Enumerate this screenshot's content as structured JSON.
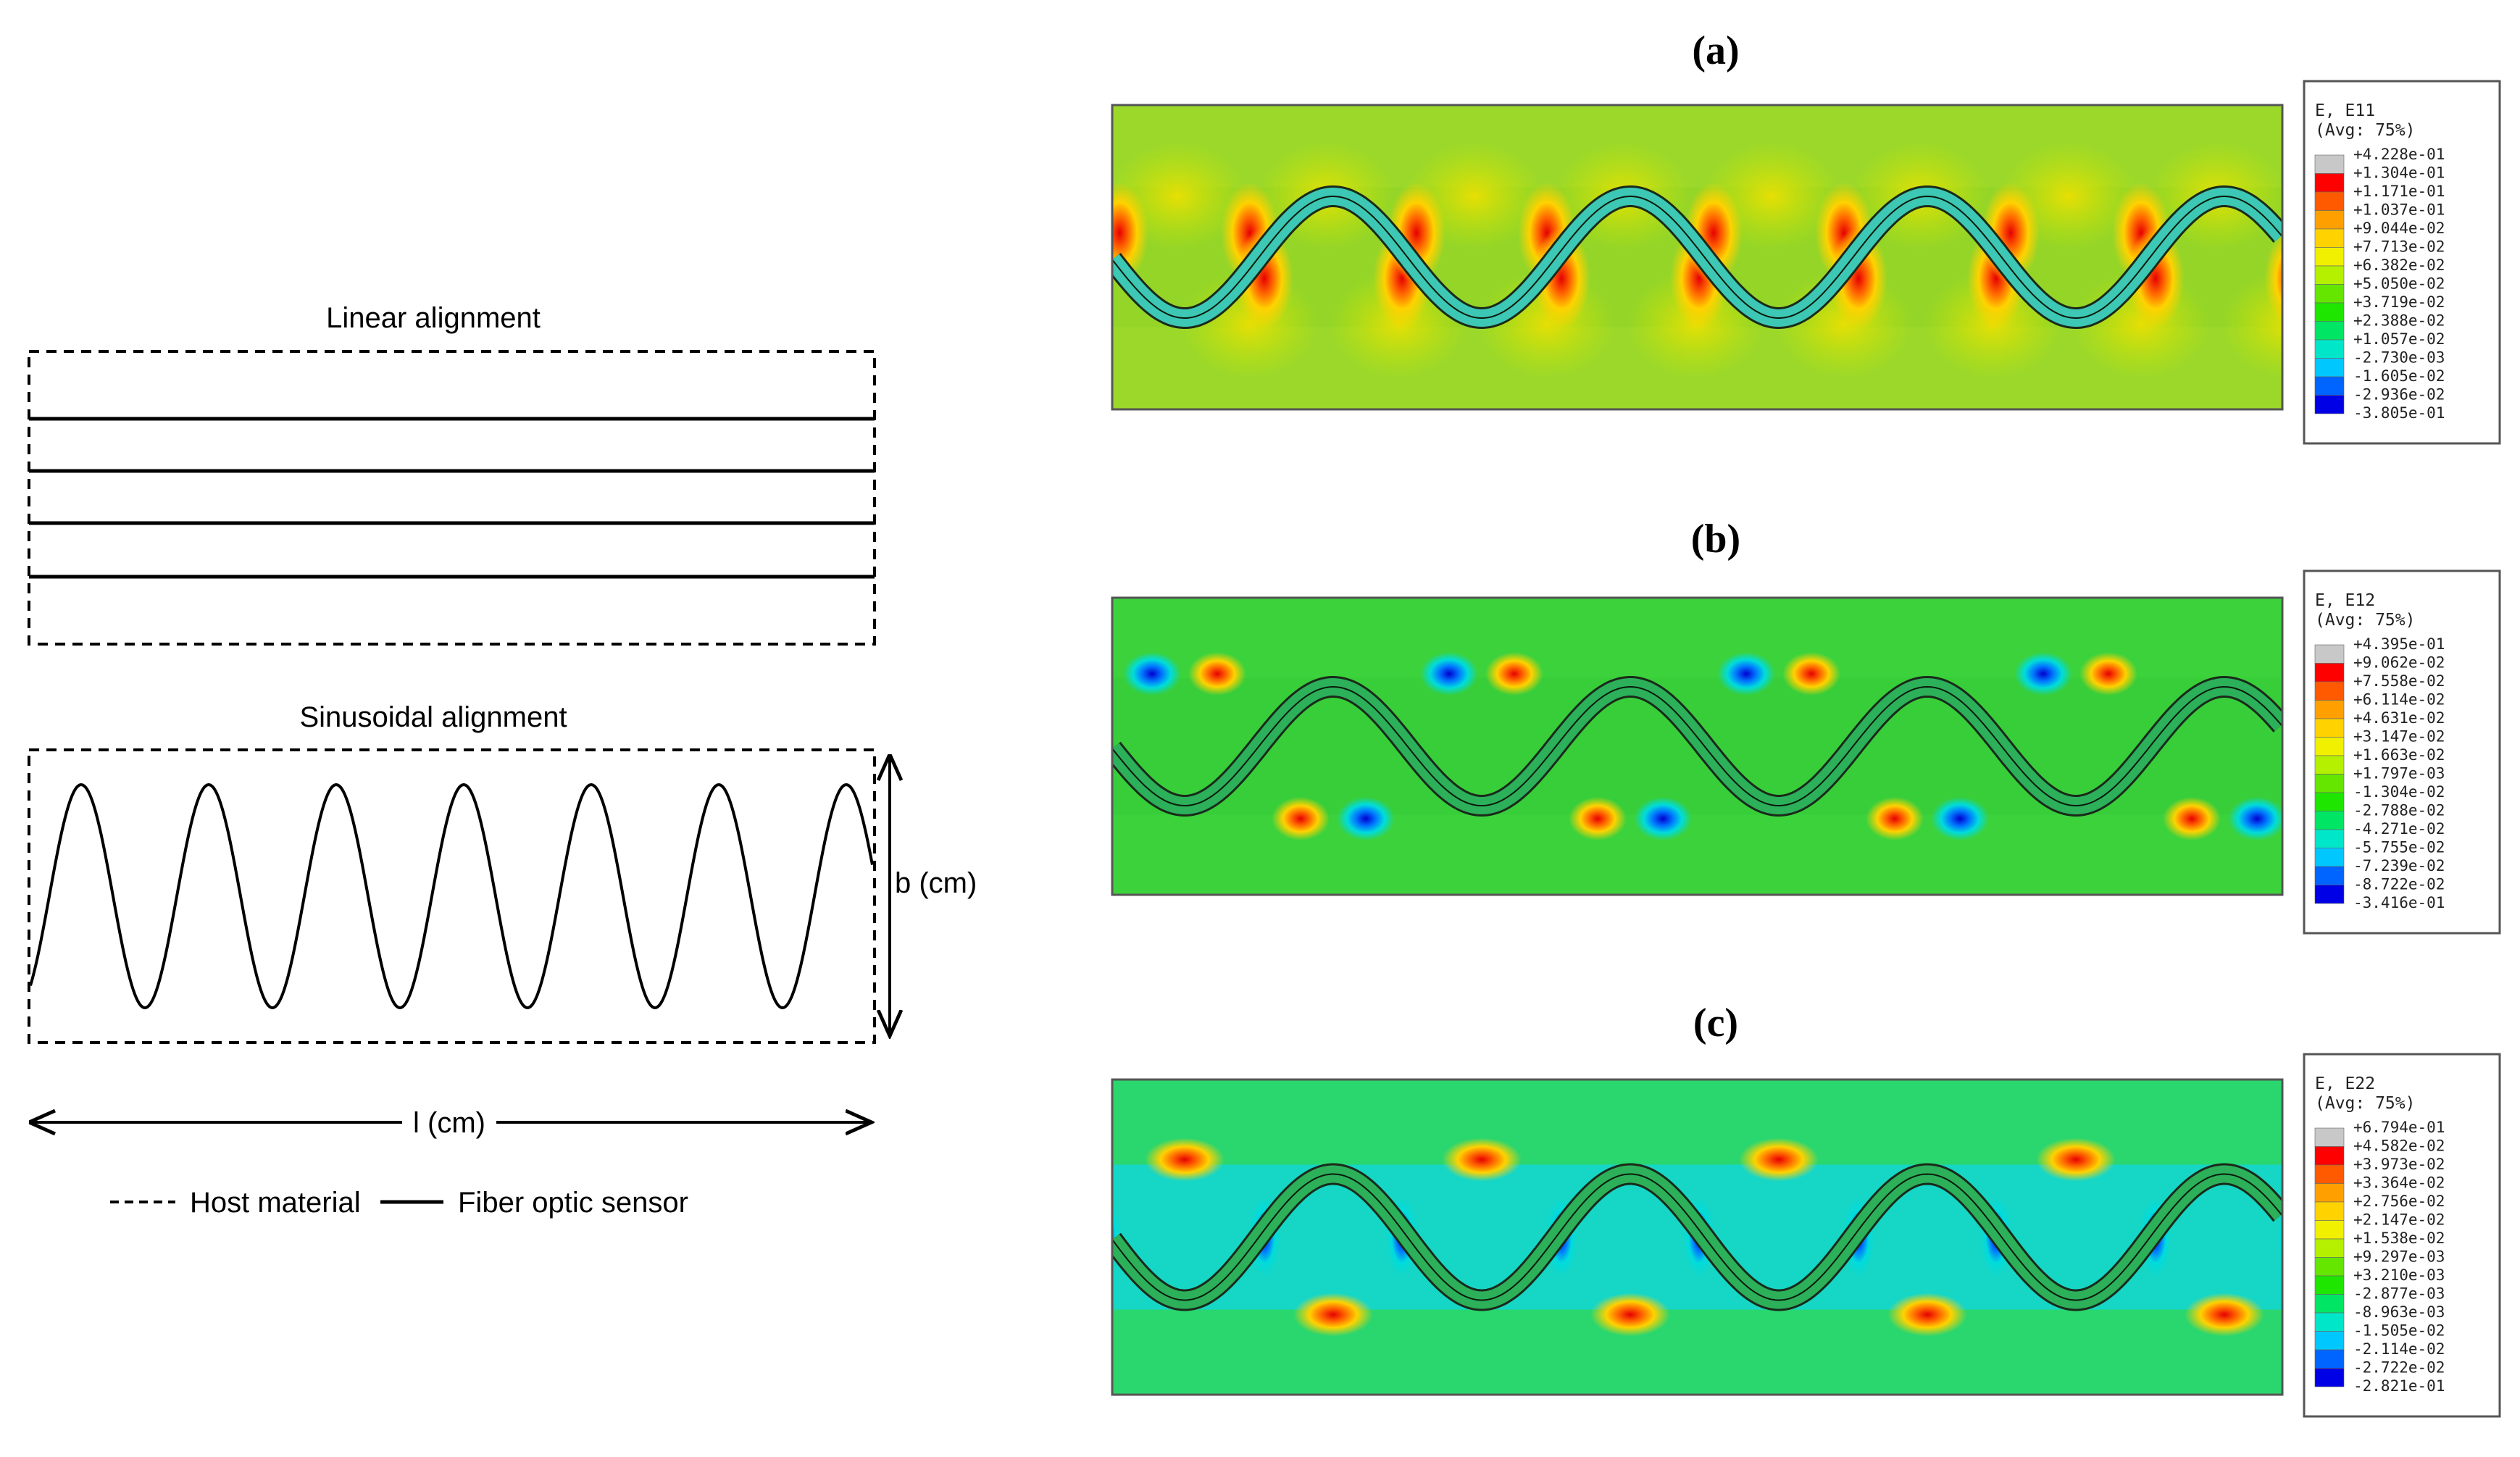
{
  "left": {
    "linear_title": "Linear alignment",
    "sinusoidal_title": "Sinusoidal alignment",
    "b_label": "b (cm)",
    "l_label": "l (cm)",
    "legend_host": "Host material",
    "legend_sensor": "Fiber optic sensor"
  },
  "panels": [
    {
      "label": "(a)",
      "legend_title": "E, E11",
      "legend_avg": "(Avg: 75%)",
      "legend_values": [
        "+4.228e-01",
        "+1.304e-01",
        "+1.171e-01",
        "+1.037e-01",
        "+9.044e-02",
        "+7.713e-02",
        "+6.382e-02",
        "+5.050e-02",
        "+3.719e-02",
        "+2.388e-02",
        "+1.057e-02",
        "-2.730e-03",
        "-1.605e-02",
        "-2.936e-02",
        "-3.805e-01"
      ]
    },
    {
      "label": "(b)",
      "legend_title": "E, E12",
      "legend_avg": "(Avg: 75%)",
      "legend_values": [
        "+4.395e-01",
        "+9.062e-02",
        "+7.558e-02",
        "+6.114e-02",
        "+4.631e-02",
        "+3.147e-02",
        "+1.663e-02",
        "+1.797e-03",
        "-1.304e-02",
        "-2.788e-02",
        "-4.271e-02",
        "-5.755e-02",
        "-7.239e-02",
        "-8.722e-02",
        "-3.416e-01"
      ]
    },
    {
      "label": "(c)",
      "legend_title": "E, E22",
      "legend_avg": "(Avg: 75%)",
      "legend_values": [
        "+6.794e-01",
        "+4.582e-02",
        "+3.973e-02",
        "+3.364e-02",
        "+2.756e-02",
        "+2.147e-02",
        "+1.538e-02",
        "+9.297e-03",
        "+3.210e-03",
        "-2.877e-03",
        "-8.963e-03",
        "-1.505e-02",
        "-2.114e-02",
        "-2.722e-02",
        "-2.821e-01"
      ]
    }
  ],
  "colors": {
    "scale": [
      "#c8c8c8",
      "#ff0000",
      "#ff5a00",
      "#ffa000",
      "#ffd200",
      "#f0f000",
      "#b4f000",
      "#64e600",
      "#1ee600",
      "#00e664",
      "#00e6c8",
      "#00c8ff",
      "#0064ff",
      "#0000e6",
      "#282828"
    ],
    "line": "#000000"
  }
}
